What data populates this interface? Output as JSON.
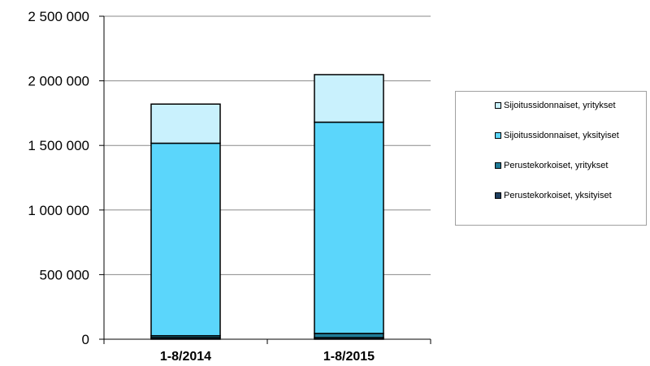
{
  "chart_data": {
    "type": "bar",
    "stacked": true,
    "categories": [
      "1-8/2014",
      "1-8/2015"
    ],
    "series": [
      {
        "name": "Perustekorkoiset, yksityiset",
        "color": "#1f3f5f",
        "values": [
          12000,
          12000
        ]
      },
      {
        "name": "Perustekorkoiset, yritykset",
        "color": "#1f7a96",
        "values": [
          15000,
          33000
        ]
      },
      {
        "name": "Sijoitussidonnaiset, yksityiset",
        "color": "#5bd6fb",
        "values": [
          1490000,
          1635000
        ]
      },
      {
        "name": "Sijoitussidonnaiset, yritykset",
        "color": "#c9f1fd",
        "values": [
          303000,
          368000
        ]
      }
    ],
    "ylim": [
      0,
      2500000
    ],
    "yticks": [
      0,
      500000,
      1000000,
      1500000,
      2000000,
      2500000
    ],
    "ytick_labels": [
      "0",
      "500 000",
      "1 000 000",
      "1 500 000",
      "2 000 000",
      "2 500 000"
    ],
    "grid": true,
    "legend_position": "right",
    "legend_order": [
      3,
      2,
      1,
      0
    ]
  }
}
